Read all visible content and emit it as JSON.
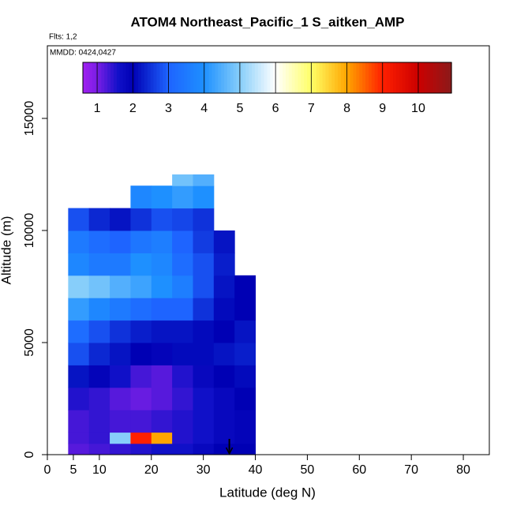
{
  "chart_data": {
    "type": "heatmap",
    "title": "ATOM4 Northeast_Pacific_1 S_aitken_AMP",
    "flights_label": "Flts: 1,2",
    "dates_label": "MMDD: 0424,0427",
    "x_label": "Latitude (deg N)",
    "y_label": "Altitude (m)",
    "xlim": [
      0,
      85
    ],
    "ylim": [
      0,
      18240
    ],
    "xticks": [
      0,
      5,
      10,
      20,
      30,
      40,
      50,
      60,
      70,
      80
    ],
    "yticks": [
      0,
      5000,
      10000,
      15000
    ],
    "x_bins": [
      4,
      8,
      12,
      16,
      20,
      24,
      28,
      32,
      36,
      40
    ],
    "y_bins": [
      0,
      500,
      1000,
      2000,
      3000,
      4000,
      5000,
      6000,
      7000,
      8000,
      9000,
      10000,
      11000,
      12000,
      12500
    ],
    "values": [
      [
        1.2,
        1.3,
        1.4,
        1.5,
        1.6,
        1.6,
        1.8,
        2.0,
        2.0
      ],
      [
        1.3,
        1.4,
        5,
        9,
        8,
        1.5,
        1.6,
        1.8,
        1.9
      ],
      [
        1.3,
        1.4,
        1.3,
        1.3,
        1.4,
        1.5,
        1.6,
        1.8,
        1.9
      ],
      [
        1.5,
        1.4,
        1.2,
        1.1,
        1.2,
        1.4,
        1.6,
        1.8,
        2.0
      ],
      [
        2.2,
        1.9,
        1.6,
        1.3,
        1.2,
        1.5,
        1.8,
        2.0,
        2.1
      ],
      [
        2.8,
        2.4,
        2.2,
        2.0,
        1.9,
        2.1,
        2.1,
        2.2,
        2.3
      ],
      [
        3.2,
        2.8,
        2.5,
        2.3,
        2.2,
        2.2,
        2.1,
        2.0,
        2.2
      ],
      [
        4.2,
        3.8,
        3.5,
        3.2,
        3.0,
        3.0,
        2.5,
        2.1,
        2.0
      ],
      [
        5.0,
        4.8,
        4.5,
        4.3,
        4.0,
        3.6,
        2.8,
        2.2,
        2.0
      ],
      [
        3.8,
        3.5,
        3.5,
        4.0,
        3.8,
        3.2,
        2.8,
        2.3,
        null
      ],
      [
        3.5,
        3.2,
        3.0,
        3.4,
        3.6,
        3.0,
        2.6,
        2.2,
        null
      ],
      [
        2.8,
        2.4,
        2.2,
        2.5,
        2.8,
        2.7,
        2.5,
        null,
        null
      ],
      [
        null,
        null,
        null,
        3.8,
        4.0,
        4.2,
        4.0,
        null,
        null
      ],
      [
        null,
        null,
        null,
        null,
        null,
        4.8,
        4.5,
        null,
        null
      ]
    ],
    "marker_lat": 35,
    "colorbar": {
      "lim": [
        0.6,
        10.93
      ],
      "ticks": [
        1,
        2,
        3,
        4,
        5,
        6,
        7,
        8,
        9,
        10
      ],
      "stops": [
        [
          0.6,
          "#a020f0"
        ],
        [
          1,
          "#7a1ee6"
        ],
        [
          1.6,
          "#1010c8"
        ],
        [
          2,
          "#0000b4"
        ],
        [
          3,
          "#1e64ff"
        ],
        [
          4,
          "#1e90ff"
        ],
        [
          5,
          "#87cefa"
        ],
        [
          6,
          "#ffffff"
        ],
        [
          7,
          "#ffff66"
        ],
        [
          8,
          "#ffa500"
        ],
        [
          9,
          "#ff2000"
        ],
        [
          10,
          "#cc0000"
        ],
        [
          10.93,
          "#8b1a1a"
        ]
      ]
    }
  }
}
